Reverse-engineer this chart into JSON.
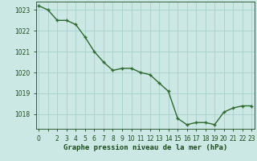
{
  "x": [
    0,
    1,
    2,
    3,
    4,
    5,
    6,
    7,
    8,
    9,
    10,
    11,
    12,
    13,
    14,
    15,
    16,
    17,
    18,
    19,
    20,
    21,
    22,
    23
  ],
  "y": [
    1023.2,
    1023.0,
    1022.5,
    1022.5,
    1022.3,
    1021.7,
    1021.0,
    1020.5,
    1020.1,
    1020.2,
    1020.2,
    1020.0,
    1019.9,
    1019.5,
    1019.1,
    1017.8,
    1017.5,
    1017.6,
    1017.6,
    1017.5,
    1018.1,
    1018.3,
    1018.4,
    1018.4
  ],
  "line_color": "#2d6a2d",
  "marker": "+",
  "bg_color": "#cce8e4",
  "grid_color": "#aacfcb",
  "xlabel": "Graphe pression niveau de la mer (hPa)",
  "xlabel_color": "#1a4a1a",
  "tick_color": "#1a4a1a",
  "ylim": [
    1017.3,
    1023.4
  ],
  "yticks": [
    1018,
    1019,
    1020,
    1021,
    1022,
    1023
  ],
  "xticks": [
    0,
    2,
    3,
    4,
    5,
    6,
    7,
    8,
    9,
    10,
    11,
    12,
    13,
    14,
    15,
    16,
    17,
    18,
    19,
    20,
    21,
    22,
    23
  ],
  "xlim": [
    -0.3,
    23.3
  ],
  "tick_fontsize": 5.5,
  "xlabel_fontsize": 6.5,
  "linewidth": 1.0,
  "markersize": 3.5,
  "markeredgewidth": 1.0
}
